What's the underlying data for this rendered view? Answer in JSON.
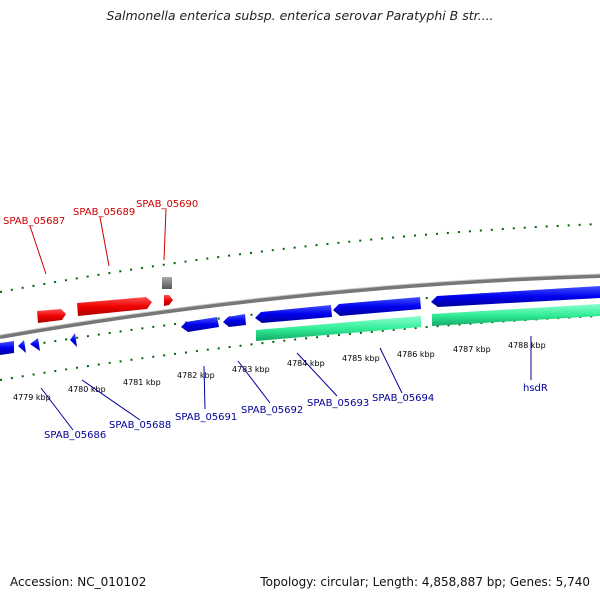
{
  "title": "Salmonella enterica subsp. enterica serovar Paratyphi B str....",
  "accession": "Accession: NC_010102",
  "summary": "Topology: circular; Length: 4,858,887 bp; Genes: 5,740",
  "colors": {
    "forward_gene": "#ff0000",
    "reverse_gene": "#0000ff",
    "other_feature": "#666666",
    "region_band": "#33ee99",
    "tick": "#006600",
    "forward_label": "#cc0000",
    "reverse_label": "#000099",
    "backbone": "#888888"
  },
  "ticks": [
    "4779 kbp",
    "4780 kbp",
    "4781 kbp",
    "4782 kbp",
    "4783 kbp",
    "4784 kbp",
    "4785 kbp",
    "4786 kbp",
    "4787 kbp",
    "4788 kbp"
  ],
  "forward_genes": [
    "SPAB_05687",
    "SPAB_05689",
    "SPAB_05690"
  ],
  "reverse_genes": [
    "SPAB_05686",
    "SPAB_05688",
    "SPAB_05691",
    "SPAB_05692",
    "SPAB_05693",
    "SPAB_05694",
    "hsdR"
  ]
}
